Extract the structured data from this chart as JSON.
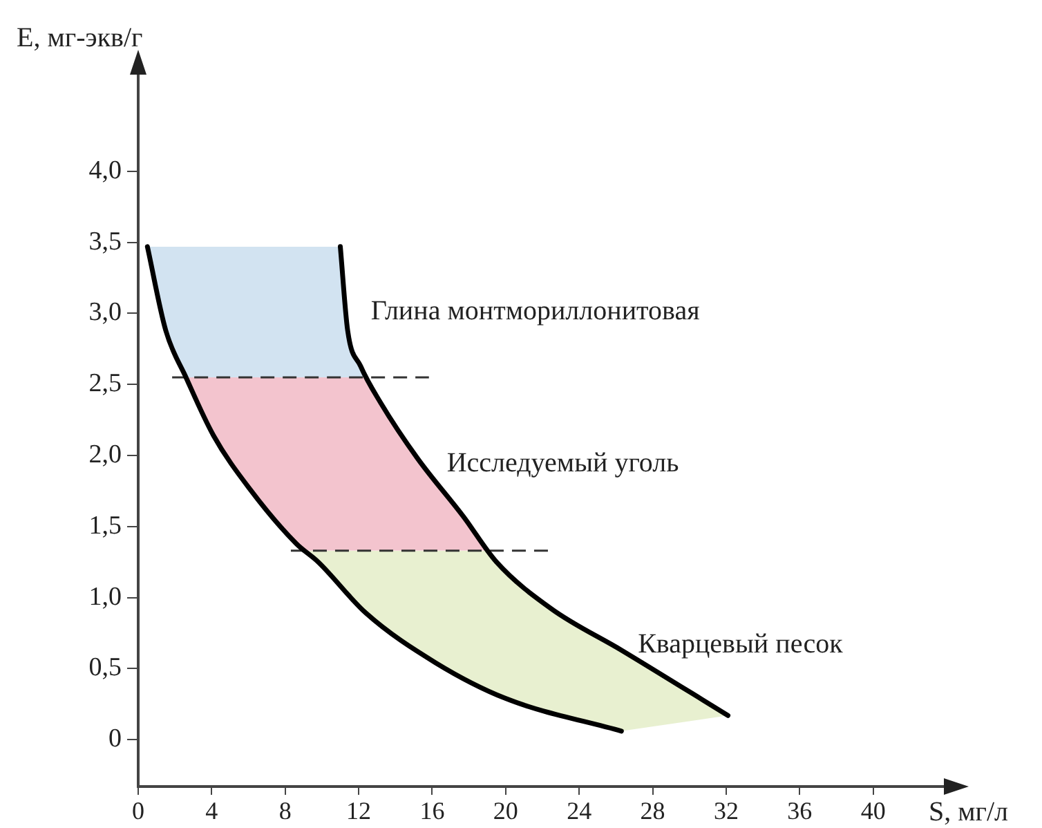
{
  "chart_data": {
    "type": "line",
    "xlabel": "S, мг/л",
    "ylabel": "E, мг-экв/г",
    "xlim": [
      0,
      44
    ],
    "xticks": [
      0,
      4,
      8,
      12,
      16,
      20,
      24,
      28,
      32,
      36,
      40
    ],
    "ylim": [
      -0.33,
      4.7
    ],
    "yticks": [
      {
        "value": 0,
        "label": "0"
      },
      {
        "value": 0.5,
        "label": "0,5"
      },
      {
        "value": 1,
        "label": "1,0"
      },
      {
        "value": 1.5,
        "label": "1,5"
      },
      {
        "value": 2,
        "label": "2,0"
      },
      {
        "value": 2.5,
        "label": "2,5"
      },
      {
        "value": 3,
        "label": "3,0"
      },
      {
        "value": 3.5,
        "label": "3,5"
      },
      {
        "value": 4,
        "label": "4,0"
      }
    ],
    "series": [
      {
        "color": "#000000",
        "x": [
          0.5,
          1.5,
          2.6,
          4.1,
          6.1,
          8.6,
          9.8,
          12.4,
          16.2,
          20.0,
          26.3
        ],
        "values": [
          3.47,
          2.88,
          2.55,
          2.14,
          1.76,
          1.38,
          1.25,
          0.89,
          0.54,
          0.29,
          0.06
        ]
      },
      {
        "color": "#000000",
        "x": [
          11.0,
          11.4,
          12.1,
          13.2,
          15.2,
          17.7,
          19.5,
          22.5,
          26.3,
          32.1
        ],
        "values": [
          3.47,
          2.88,
          2.63,
          2.37,
          1.98,
          1.57,
          1.25,
          0.92,
          0.63,
          0.17
        ]
      }
    ],
    "ref_lines": [
      {
        "axis": "y",
        "value": 2.55,
        "color": "#333333",
        "line_style": "dashed"
      },
      {
        "axis": "y",
        "value": 1.33,
        "color": "#333333",
        "line_style": "dashed"
      }
    ],
    "bands": [
      {
        "axis": "y",
        "from": 2.55,
        "to": 3.47,
        "label": "Глина монтмориллонитовая",
        "color": "#8fb8dc"
      },
      {
        "axis": "y",
        "from": 1.33,
        "to": 2.55,
        "label": "Исследуемый уголь",
        "color": "#e06b85"
      },
      {
        "axis": "y",
        "from": 0,
        "to": 1.33,
        "label": "Кварцевый песок",
        "color": "#c5da8a"
      }
    ],
    "grid": false,
    "legend": false,
    "marker": "none",
    "line_style": "solid"
  }
}
